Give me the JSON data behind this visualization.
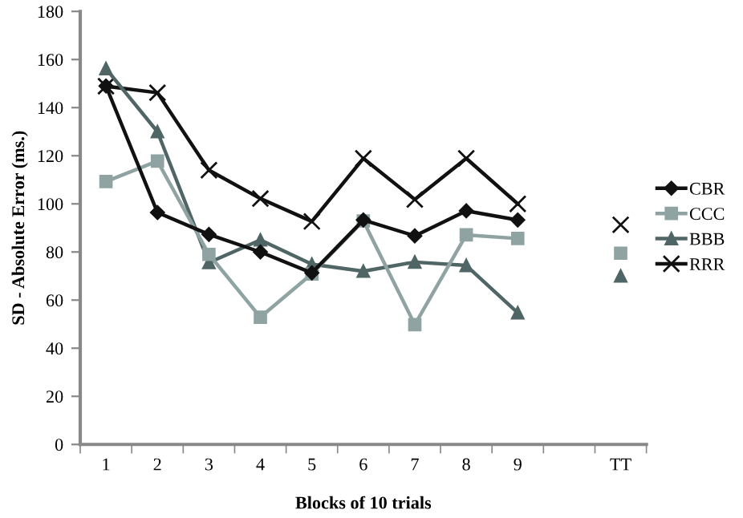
{
  "chart_data": {
    "type": "line",
    "xlabel": "Blocks of 10 trials",
    "ylabel": "SD - Absolute Error (ms.)",
    "categories": [
      "1",
      "2",
      "3",
      "4",
      "5",
      "6",
      "7",
      "8",
      "9",
      null,
      "TT"
    ],
    "ylim": [
      0,
      180
    ],
    "yticks": [
      0,
      20,
      40,
      60,
      80,
      100,
      120,
      140,
      160,
      180
    ],
    "grid": false,
    "legend": "right",
    "series": [
      {
        "name": "CBR",
        "color": "#111111",
        "marker": "diamond",
        "values": [
          149,
          96.4,
          87.3,
          80,
          71.3,
          93.3,
          86.7,
          97.1,
          93.3,
          null,
          null
        ]
      },
      {
        "name": "CCC",
        "color": "#8fa3a3",
        "marker": "square",
        "values": [
          109.3,
          117.8,
          79,
          52.9,
          70.9,
          92.9,
          49.8,
          87.1,
          85.6,
          null,
          79.5
        ]
      },
      {
        "name": "BBB",
        "color": "#4f6566",
        "marker": "triangle",
        "values": [
          156.2,
          130,
          75.6,
          85,
          74.9,
          72,
          75.8,
          74.4,
          54.7,
          null,
          70
        ]
      },
      {
        "name": "RRR",
        "color": "#111111",
        "marker": "cross",
        "values": [
          148.9,
          146.2,
          114,
          102.2,
          92.7,
          118.9,
          101.8,
          118.9,
          100,
          null,
          91.3
        ]
      }
    ]
  }
}
